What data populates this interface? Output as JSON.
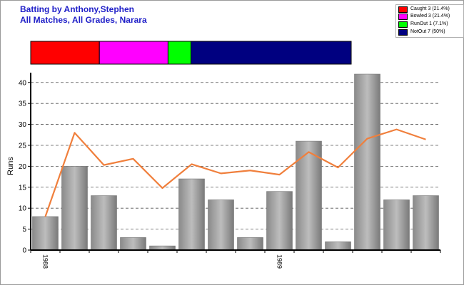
{
  "header": {
    "title": "Batting by Anthony,Stephen",
    "subtitle": "All Matches, All Grades, Narara"
  },
  "colors": {
    "title": "#1f1fc8",
    "bar": "#a0a0a0",
    "avg_line": "#f07f3c",
    "caught": "#ff0000",
    "bowled": "#ff00ff",
    "runout": "#00ff00",
    "notout": "#000080"
  },
  "legend": [
    {
      "label": "Caught 3 (21.4%)",
      "color": "#ff0000"
    },
    {
      "label": "Bowled 3 (21.4%)",
      "color": "#ff00ff"
    },
    {
      "label": "RunOut 1 (7.1%)",
      "color": "#00ff00"
    },
    {
      "label": "NotOut 7 (50%)",
      "color": "#000080"
    }
  ],
  "chart_data": [
    {
      "type": "bar",
      "name": "dismissals",
      "categories": [
        "Caught",
        "Bowled",
        "RunOut",
        "NotOut"
      ],
      "values": [
        3,
        3,
        1,
        7
      ],
      "percentages": [
        21.4,
        21.4,
        7.1,
        50
      ]
    },
    {
      "type": "bar",
      "ylabel": "Runs",
      "ylim": [
        0,
        42
      ],
      "yticks": [
        0,
        5,
        10,
        15,
        20,
        25,
        30,
        35,
        40
      ],
      "grid": true,
      "x_tick_labels": [
        {
          "index": 0,
          "label": "1988"
        },
        {
          "index": 8,
          "label": "1989"
        }
      ],
      "series": [
        {
          "type": "bar",
          "values": [
            8,
            20,
            13,
            3,
            1,
            17,
            12,
            3,
            14,
            26,
            2,
            42,
            12,
            13
          ]
        },
        {
          "type": "line",
          "values": [
            8,
            28,
            20.3,
            21.8,
            14.8,
            20.5,
            18.3,
            19,
            18,
            23.4,
            19.7,
            26.6,
            28.8,
            26.4
          ]
        }
      ]
    }
  ]
}
